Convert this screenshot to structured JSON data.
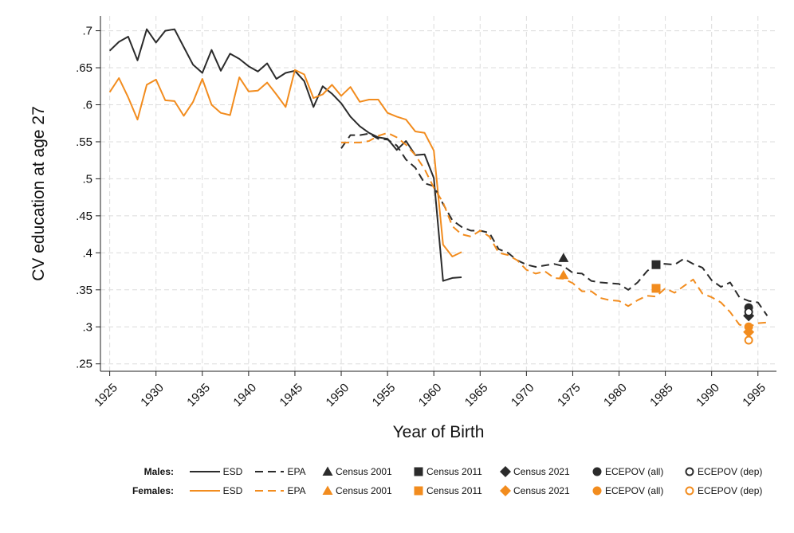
{
  "chart_data": {
    "type": "line",
    "xlabel": "Year of Birth",
    "ylabel": "CV education at age 27",
    "xlim": [
      1924,
      1997
    ],
    "ylim": [
      0.24,
      0.72
    ],
    "x_ticks": [
      1925,
      1930,
      1935,
      1940,
      1945,
      1950,
      1955,
      1960,
      1965,
      1970,
      1975,
      1980,
      1985,
      1990,
      1995
    ],
    "x_tick_labels": [
      "1925",
      "1930",
      "1935",
      "1940",
      "1945",
      "1950",
      "1955",
      "1960",
      "1965",
      "1970",
      "1975",
      "1980",
      "1985",
      "1990",
      "1995"
    ],
    "y_ticks": [
      0.25,
      0.3,
      0.35,
      0.4,
      0.45,
      0.5,
      0.55,
      0.6,
      0.65,
      0.7
    ],
    "y_tick_labels": [
      ".25",
      ".3",
      ".35",
      ".4",
      ".45",
      ".5",
      ".55",
      ".6",
      ".65",
      ".7"
    ],
    "grid": true,
    "legend_position": "bottom",
    "colors": {
      "males": "#2b2b2b",
      "females": "#f28c1e",
      "grid": "#dcdcdc"
    },
    "legend": {
      "groups": [
        "Males:",
        "Females:"
      ],
      "entries": [
        "ESD",
        "EPA",
        "Census 2001",
        "Census 2011",
        "Census 2021",
        "ECEPOV (all)",
        "ECEPOV (dep)"
      ]
    },
    "series": [
      {
        "name": "ESD",
        "group": "Males",
        "style": "solid",
        "color": "#2b2b2b",
        "x": [
          1925,
          1926,
          1927,
          1928,
          1929,
          1930,
          1931,
          1932,
          1933,
          1934,
          1935,
          1936,
          1937,
          1938,
          1939,
          1940,
          1941,
          1942,
          1943,
          1944,
          1945,
          1946,
          1947,
          1948,
          1949,
          1950,
          1951,
          1952,
          1953,
          1954,
          1955,
          1956,
          1957,
          1958,
          1959,
          1960,
          1961,
          1962,
          1963
        ],
        "y": [
          0.673,
          0.685,
          0.692,
          0.66,
          0.702,
          0.684,
          0.7,
          0.702,
          0.678,
          0.654,
          0.643,
          0.674,
          0.646,
          0.669,
          0.662,
          0.652,
          0.645,
          0.656,
          0.635,
          0.643,
          0.646,
          0.632,
          0.597,
          0.625,
          0.615,
          0.602,
          0.584,
          0.571,
          0.562,
          0.556,
          0.554,
          0.539,
          0.551,
          0.532,
          0.533,
          0.501,
          0.362,
          0.366,
          0.367
        ]
      },
      {
        "name": "ESD",
        "group": "Females",
        "style": "solid",
        "color": "#f28c1e",
        "x": [
          1925,
          1926,
          1927,
          1928,
          1929,
          1930,
          1931,
          1932,
          1933,
          1934,
          1935,
          1936,
          1937,
          1938,
          1939,
          1940,
          1941,
          1942,
          1943,
          1944,
          1945,
          1946,
          1947,
          1948,
          1949,
          1950,
          1951,
          1952,
          1953,
          1954,
          1955,
          1956,
          1957,
          1958,
          1959,
          1960,
          1961,
          1962,
          1963
        ],
        "y": [
          0.617,
          0.636,
          0.61,
          0.58,
          0.627,
          0.634,
          0.606,
          0.605,
          0.585,
          0.604,
          0.635,
          0.6,
          0.589,
          0.586,
          0.637,
          0.618,
          0.619,
          0.63,
          0.614,
          0.597,
          0.647,
          0.641,
          0.609,
          0.614,
          0.627,
          0.612,
          0.624,
          0.604,
          0.607,
          0.607,
          0.589,
          0.584,
          0.58,
          0.564,
          0.562,
          0.538,
          0.411,
          0.395,
          0.401
        ]
      },
      {
        "name": "EPA",
        "group": "Males",
        "style": "dashed",
        "color": "#2b2b2b",
        "x": [
          1950,
          1951,
          1952,
          1953,
          1954,
          1955,
          1956,
          1957,
          1958,
          1959,
          1960,
          1961,
          1962,
          1963,
          1964,
          1965,
          1966,
          1967,
          1968,
          1969,
          1970,
          1971,
          1972,
          1973,
          1974,
          1975,
          1976,
          1977,
          1978,
          1979,
          1980,
          1981,
          1982,
          1983,
          1984,
          1985,
          1986,
          1987,
          1988,
          1989,
          1990,
          1991,
          1992,
          1993,
          1994,
          1995,
          1996
        ],
        "y": [
          0.541,
          0.559,
          0.559,
          0.561,
          0.554,
          0.553,
          0.545,
          0.526,
          0.515,
          0.494,
          0.49,
          0.466,
          0.444,
          0.435,
          0.43,
          0.43,
          0.427,
          0.405,
          0.4,
          0.39,
          0.384,
          0.381,
          0.383,
          0.385,
          0.382,
          0.373,
          0.372,
          0.362,
          0.36,
          0.359,
          0.358,
          0.35,
          0.36,
          0.375,
          0.386,
          0.385,
          0.384,
          0.392,
          0.385,
          0.38,
          0.363,
          0.354,
          0.36,
          0.34,
          0.335,
          0.333,
          0.315
        ]
      },
      {
        "name": "EPA",
        "group": "Females",
        "style": "dashed",
        "color": "#f28c1e",
        "x": [
          1950,
          1951,
          1952,
          1953,
          1954,
          1955,
          1956,
          1957,
          1958,
          1959,
          1960,
          1961,
          1962,
          1963,
          1964,
          1965,
          1966,
          1967,
          1968,
          1969,
          1970,
          1971,
          1972,
          1973,
          1974,
          1975,
          1976,
          1977,
          1978,
          1979,
          1980,
          1981,
          1982,
          1983,
          1984,
          1985,
          1986,
          1987,
          1988,
          1989,
          1990,
          1991,
          1992,
          1993,
          1994,
          1995,
          1996
        ],
        "y": [
          0.549,
          0.549,
          0.549,
          0.551,
          0.558,
          0.562,
          0.556,
          0.546,
          0.532,
          0.513,
          0.488,
          0.468,
          0.436,
          0.425,
          0.422,
          0.43,
          0.422,
          0.4,
          0.397,
          0.39,
          0.377,
          0.372,
          0.375,
          0.366,
          0.365,
          0.359,
          0.348,
          0.348,
          0.339,
          0.336,
          0.335,
          0.328,
          0.336,
          0.342,
          0.341,
          0.352,
          0.346,
          0.355,
          0.364,
          0.345,
          0.34,
          0.333,
          0.32,
          0.303,
          0.3,
          0.305,
          0.306
        ]
      }
    ],
    "markers": [
      {
        "name": "Census 2001",
        "group": "Males",
        "shape": "triangle",
        "x": 1974,
        "y": 0.393,
        "color": "#2b2b2b"
      },
      {
        "name": "Census 2001",
        "group": "Females",
        "shape": "triangle",
        "x": 1974,
        "y": 0.37,
        "color": "#f28c1e"
      },
      {
        "name": "Census 2011",
        "group": "Males",
        "shape": "square",
        "x": 1984,
        "y": 0.384,
        "color": "#2b2b2b"
      },
      {
        "name": "Census 2011",
        "group": "Females",
        "shape": "square",
        "x": 1984,
        "y": 0.352,
        "color": "#f28c1e"
      },
      {
        "name": "Census 2021",
        "group": "Males",
        "shape": "diamond",
        "x": 1994,
        "y": 0.315,
        "color": "#2b2b2b"
      },
      {
        "name": "Census 2021",
        "group": "Females",
        "shape": "diamond",
        "x": 1994,
        "y": 0.293,
        "color": "#f28c1e"
      },
      {
        "name": "ECEPOV (all)",
        "group": "Males",
        "shape": "circle",
        "x": 1994,
        "y": 0.326,
        "color": "#2b2b2b"
      },
      {
        "name": "ECEPOV (all)",
        "group": "Females",
        "shape": "circle",
        "x": 1994,
        "y": 0.3,
        "color": "#f28c1e"
      },
      {
        "name": "ECEPOV (dep)",
        "group": "Males",
        "shape": "hollow-circle",
        "x": 1994,
        "y": 0.32,
        "color": "#2b2b2b"
      },
      {
        "name": "ECEPOV (dep)",
        "group": "Females",
        "shape": "hollow-circle",
        "x": 1994,
        "y": 0.282,
        "color": "#f28c1e"
      }
    ]
  }
}
